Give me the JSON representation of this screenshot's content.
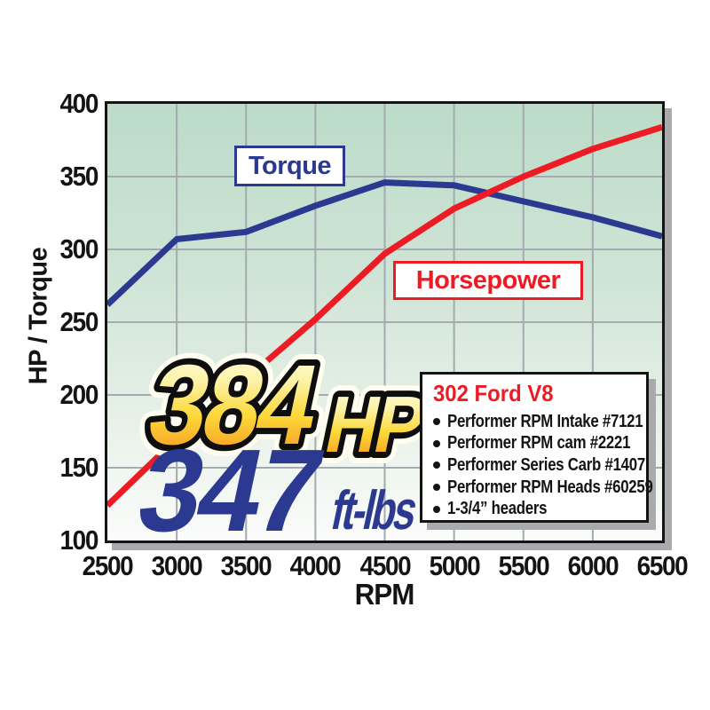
{
  "chart_data": {
    "type": "line",
    "xlabel": "RPM",
    "ylabel": "HP / Torque",
    "x": [
      2500,
      3000,
      3500,
      4000,
      4500,
      5000,
      5500,
      6000,
      6500
    ],
    "xlim": [
      2500,
      6500
    ],
    "ylim": [
      100,
      400
    ],
    "yticks": [
      100,
      150,
      200,
      250,
      300,
      350,
      400
    ],
    "grid": true,
    "grid_color": "#a5aab0",
    "plot_background": [
      "#bcdbc9",
      "#ffffff"
    ],
    "legend_position": "inline-boxes",
    "series": [
      {
        "name": "Torque",
        "color": "#2b3a90",
        "values": [
          262,
          307,
          312,
          330,
          346,
          344,
          333,
          322,
          309
        ]
      },
      {
        "name": "Horsepower",
        "color": "#ed1c24",
        "values": [
          124,
          170,
          211,
          252,
          297,
          328,
          350,
          369,
          384
        ]
      }
    ]
  },
  "legend": {
    "torque": "Torque",
    "horsepower": "Horsepower"
  },
  "callouts": {
    "hp_value": "384",
    "hp_unit": "HP",
    "hp_gradient": [
      "#fffef4",
      "#fdf2a4",
      "#fcd938",
      "#f5861f"
    ],
    "tq_value": "347",
    "tq_unit": "ft-lbs",
    "tq_color": "#2b3a90"
  },
  "spec_box": {
    "title": "302 Ford V8",
    "items": [
      "Performer RPM Intake #7121",
      "Performer RPM cam #2221",
      "Performer Series Carb #1407",
      "Performer RPM Heads #60259",
      "1-3/4” headers"
    ]
  }
}
